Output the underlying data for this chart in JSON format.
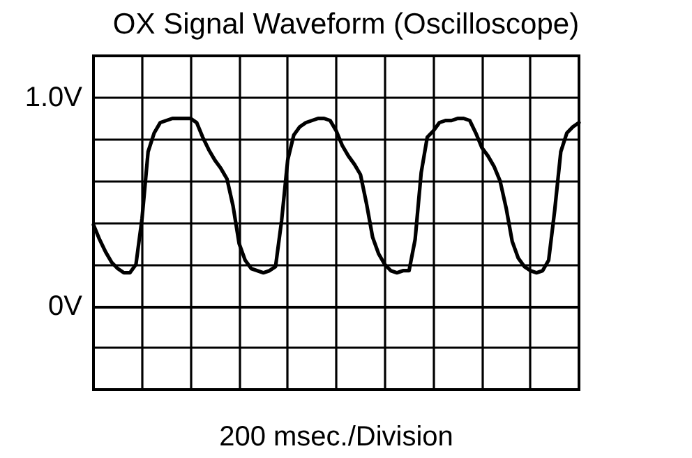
{
  "chart_data": {
    "type": "line",
    "title": "OX Signal Waveform (Oscilloscope)",
    "xlabel": "200 msec./Division",
    "categories": [
      null,
      null,
      null,
      null,
      null,
      null,
      null,
      null,
      null,
      null,
      null,
      null,
      null,
      null,
      null,
      null,
      null,
      null,
      null,
      null,
      null,
      null,
      null,
      null,
      null,
      null,
      null,
      null,
      null,
      null,
      null,
      null,
      null,
      null,
      null,
      null,
      null,
      null,
      null,
      null,
      null,
      null,
      null,
      null,
      null,
      null,
      null,
      null,
      null,
      null,
      null,
      null,
      null,
      null,
      null,
      null,
      null,
      null,
      null,
      null,
      null,
      null,
      null,
      null,
      null,
      null,
      null,
      null,
      null,
      null,
      null,
      null,
      null,
      null,
      null,
      null,
      null,
      null,
      null,
      null,
      null
    ],
    "series": [
      {
        "color": "#000000",
        "values": [
          0.39,
          0.32,
          0.26,
          0.21,
          0.18,
          0.16,
          0.16,
          0.2,
          0.42,
          0.74,
          0.83,
          0.88,
          0.89,
          0.9,
          0.9,
          0.9,
          0.9,
          0.88,
          0.81,
          0.75,
          0.7,
          0.66,
          0.61,
          0.48,
          0.3,
          0.22,
          0.18,
          0.17,
          0.16,
          0.17,
          0.19,
          0.41,
          0.7,
          0.82,
          0.86,
          0.88,
          0.89,
          0.9,
          0.9,
          0.89,
          0.84,
          0.77,
          0.72,
          0.68,
          0.63,
          0.49,
          0.33,
          0.25,
          0.2,
          0.17,
          0.16,
          0.17,
          0.17,
          0.32,
          0.64,
          0.81,
          0.84,
          0.88,
          0.89,
          0.89,
          0.9,
          0.9,
          0.89,
          0.83,
          0.76,
          0.72,
          0.67,
          0.6,
          0.47,
          0.31,
          0.23,
          0.19,
          0.17,
          0.16,
          0.17,
          0.22,
          0.46,
          0.74,
          0.83,
          0.86,
          0.88
        ]
      }
    ],
    "ylim": [
      -0.4,
      1.2
    ],
    "yticks": [
      {
        "value": -0.4,
        "label": null
      },
      {
        "value": -0.2,
        "label": null
      },
      {
        "value": 0,
        "label": "0V"
      },
      {
        "value": 0.2,
        "label": null
      },
      {
        "value": 0.4,
        "label": null
      },
      {
        "value": 0.6,
        "label": null
      },
      {
        "value": 0.8,
        "label": null
      },
      {
        "value": 1.0,
        "label": "1.0V"
      },
      {
        "value": 1.2,
        "label": null
      }
    ],
    "grid": true,
    "tick_labels": "y",
    "line_style": "solid"
  }
}
